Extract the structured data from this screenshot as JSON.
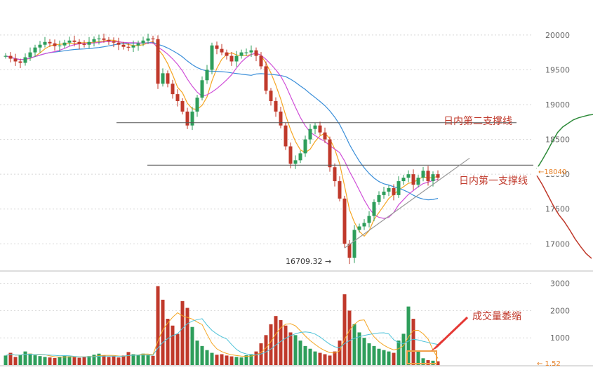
{
  "chart_data": [
    {
      "type": "candlestick",
      "ylim": [
        16650,
        20200
      ],
      "yticks": [
        "20000",
        "19500",
        "19000",
        "18500",
        "18000",
        "17500",
        "17000"
      ],
      "ytick_values": [
        20000,
        19500,
        19000,
        18500,
        18000,
        17500,
        17000
      ],
      "grid": true,
      "up_color": "#2e9e5b",
      "down_color": "#c0392b",
      "ma_colors": {
        "fast": "#f5a623",
        "mid": "#3b8fd9",
        "slow": "#d04fd8"
      },
      "closes": [
        19700,
        19660,
        19620,
        19600,
        19680,
        19750,
        19820,
        19860,
        19900,
        19880,
        19840,
        19850,
        19890,
        19920,
        19900,
        19870,
        19860,
        19900,
        19940,
        19950,
        19930,
        19910,
        19890,
        19860,
        19830,
        19820,
        19850,
        19880,
        19920,
        19950,
        19940,
        19300,
        19450,
        19300,
        19150,
        19050,
        18900,
        18700,
        18900,
        19100,
        19350,
        19500,
        19850,
        19800,
        19750,
        19700,
        19620,
        19700,
        19750,
        19750,
        19780,
        19700,
        19550,
        19200,
        19050,
        18900,
        18700,
        18400,
        18150,
        18200,
        18300,
        18500,
        18650,
        18700,
        18600,
        18500,
        18100,
        17900,
        17650,
        17000,
        16800,
        17200,
        17250,
        17300,
        17400,
        17600,
        17700,
        17750,
        17800,
        17700,
        17900,
        17950,
        18000,
        17850,
        17950,
        18050,
        17900,
        18000,
        17950
      ],
      "low_label": "16709.32",
      "low_value": 16709.32,
      "current_price_label": "18040",
      "current_price": 18040,
      "support_lines": [
        {
          "label": "日内第一支撑线",
          "value": 18130
        },
        {
          "label": "日内第二支撑线",
          "value": 18740
        }
      ],
      "trendline": {
        "from_bar": 69,
        "from_value": 16940,
        "to_bar": 88,
        "to_value": 18200
      },
      "side_curve": {
        "upper_color": "#2e8b3a",
        "lower_color": "#c0392b",
        "values": [
          18080,
          18200,
          18330,
          18470,
          18600,
          18680,
          18730,
          18780,
          18810,
          18830,
          18850,
          18860
        ]
      },
      "lower_side_values": [
        17980,
        17850,
        17700,
        17550,
        17420,
        17320,
        17200,
        17070,
        16960,
        16860,
        16790
      ]
    },
    {
      "type": "bar",
      "ylim": [
        0,
        3300
      ],
      "yticks": [
        "3000",
        "2000",
        "1000"
      ],
      "ytick_values": [
        3000,
        2000,
        1000
      ],
      "grid": true,
      "values": [
        350,
        450,
        300,
        380,
        500,
        420,
        360,
        330,
        300,
        280,
        260,
        300,
        340,
        320,
        290,
        270,
        300,
        330,
        380,
        420,
        360,
        300,
        320,
        280,
        350,
        480,
        400,
        360,
        420,
        380,
        340,
        2900,
        2400,
        1700,
        1450,
        1150,
        2350,
        2100,
        1400,
        900,
        700,
        550,
        450,
        380,
        400,
        350,
        320,
        300,
        280,
        360,
        400,
        500,
        800,
        1100,
        1500,
        1800,
        1650,
        1450,
        1200,
        1100,
        900,
        700,
        600,
        500,
        450,
        400,
        350,
        500,
        900,
        2600,
        2000,
        1500,
        1200,
        1000,
        800,
        700,
        600,
        550,
        500,
        450,
        900,
        1150,
        2150,
        1700,
        500,
        250,
        180,
        160,
        140
      ],
      "up_down": [
        1,
        0,
        0,
        1,
        1,
        1,
        1,
        1,
        1,
        0,
        0,
        1,
        1,
        1,
        0,
        0,
        0,
        1,
        1,
        1,
        0,
        0,
        0,
        0,
        0,
        0,
        1,
        1,
        1,
        1,
        0,
        0,
        0,
        0,
        0,
        0,
        0,
        0,
        1,
        1,
        1,
        1,
        1,
        0,
        0,
        0,
        0,
        1,
        1,
        1,
        1,
        0,
        0,
        0,
        0,
        0,
        0,
        0,
        0,
        1,
        1,
        1,
        1,
        1,
        0,
        0,
        0,
        0,
        0,
        0,
        0,
        1,
        1,
        1,
        1,
        1,
        1,
        1,
        1,
        0,
        1,
        1,
        1,
        0,
        1,
        1,
        0,
        1,
        0
      ],
      "volume_label": "成交量萎缩",
      "current_label": "← 1.52",
      "arrow_color": "#e53935",
      "highlight_color": "#f0a04b"
    }
  ]
}
